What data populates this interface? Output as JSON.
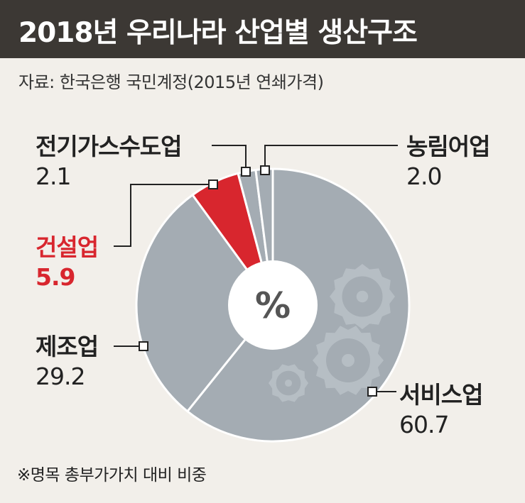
{
  "title": "2018년 우리나라 산업별 생산구조",
  "source": "자료: 한국은행 국민계정(2015년 연쇄가격)",
  "footnote": "※명목 총부가가치 대비 비중",
  "center_label": "%",
  "colors": {
    "gray": "#a4acb3",
    "highlight": "#d8262e",
    "header_bg": "#3c3834",
    "background": "#f2efea"
  },
  "chart_data": {
    "type": "pie",
    "title": "2018년 우리나라 산업별 생산구조",
    "unit": "%",
    "slices": [
      {
        "label": "서비스업",
        "value": 60.7,
        "value_label": "60.7",
        "color": "#a4acb3",
        "highlight": false
      },
      {
        "label": "제조업",
        "value": 29.2,
        "value_label": "29.2",
        "color": "#a4acb3",
        "highlight": false
      },
      {
        "label": "건설업",
        "value": 5.9,
        "value_label": "5.9",
        "color": "#d8262e",
        "highlight": true
      },
      {
        "label": "전기가스수도업",
        "value": 2.1,
        "value_label": "2.1",
        "color": "#a4acb3",
        "highlight": false
      },
      {
        "label": "농림어업",
        "value": 2.0,
        "value_label": "2.0",
        "color": "#a4acb3",
        "highlight": false
      }
    ]
  }
}
